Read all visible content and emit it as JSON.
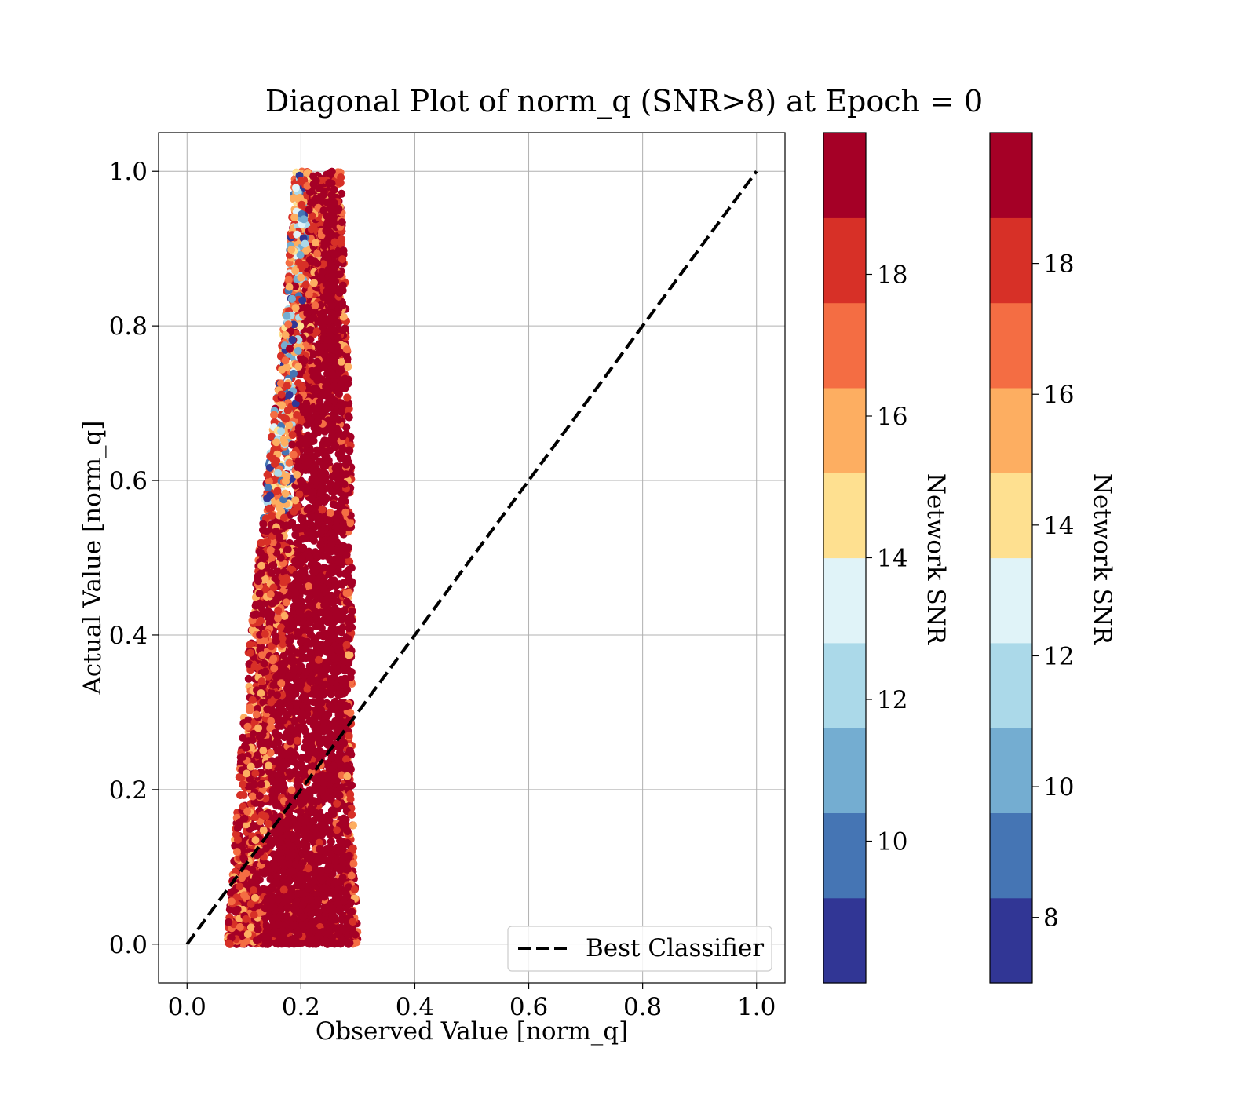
{
  "chart_data": {
    "type": "scatter",
    "title": "Diagonal Plot of norm_q (SNR>8) at Epoch = 0",
    "xlabel": "Observed Value [norm_q]",
    "ylabel": "Actual Value [norm_q]",
    "xlim": [
      -0.05,
      1.05
    ],
    "ylim": [
      -0.05,
      1.05
    ],
    "xticks": [
      "0.0",
      "0.2",
      "0.4",
      "0.6",
      "0.8",
      "1.0"
    ],
    "yticks": [
      "0.0",
      "0.2",
      "0.4",
      "0.6",
      "0.8",
      "1.0"
    ],
    "grid": true,
    "legend": {
      "position": "lower-right",
      "entries": [
        {
          "label": "Best Classifier",
          "style": "dashed",
          "color": "#000000"
        }
      ]
    },
    "reference_line": {
      "label": "Best Classifier",
      "x": [
        0,
        1
      ],
      "y": [
        0,
        1
      ]
    },
    "scatter_envelope": {
      "description_points": [
        {
          "y": 0.0,
          "x_min": 0.07,
          "x_max": 0.3
        },
        {
          "y": 0.2,
          "x_min": 0.09,
          "x_max": 0.29
        },
        {
          "y": 0.4,
          "x_min": 0.11,
          "x_max": 0.29
        },
        {
          "y": 0.6,
          "x_min": 0.14,
          "x_max": 0.29
        },
        {
          "y": 0.8,
          "x_min": 0.17,
          "x_max": 0.28
        },
        {
          "y": 1.0,
          "x_min": 0.19,
          "x_max": 0.27
        }
      ],
      "approx_points": 9000,
      "dominant_snr": 19.5
    },
    "colorbars": [
      {
        "label": "Network SNR",
        "range": [
          8.0,
          20.0
        ],
        "ticks": [
          "10",
          "12",
          "14",
          "16",
          "18"
        ],
        "tick_values": [
          10,
          12,
          14,
          16,
          18
        ],
        "bins": 10
      },
      {
        "label": "Network SNR",
        "range": [
          7.0,
          20.0
        ],
        "ticks": [
          "8",
          "10",
          "12",
          "14",
          "16",
          "18"
        ],
        "tick_values": [
          8,
          10,
          12,
          14,
          16,
          18
        ],
        "bins": 10
      }
    ],
    "colormap": [
      "#313695",
      "#4575b4",
      "#74add1",
      "#abd9e9",
      "#e0f3f8",
      "#fee090",
      "#fdae61",
      "#f46d43",
      "#d73027",
      "#a50026"
    ]
  }
}
